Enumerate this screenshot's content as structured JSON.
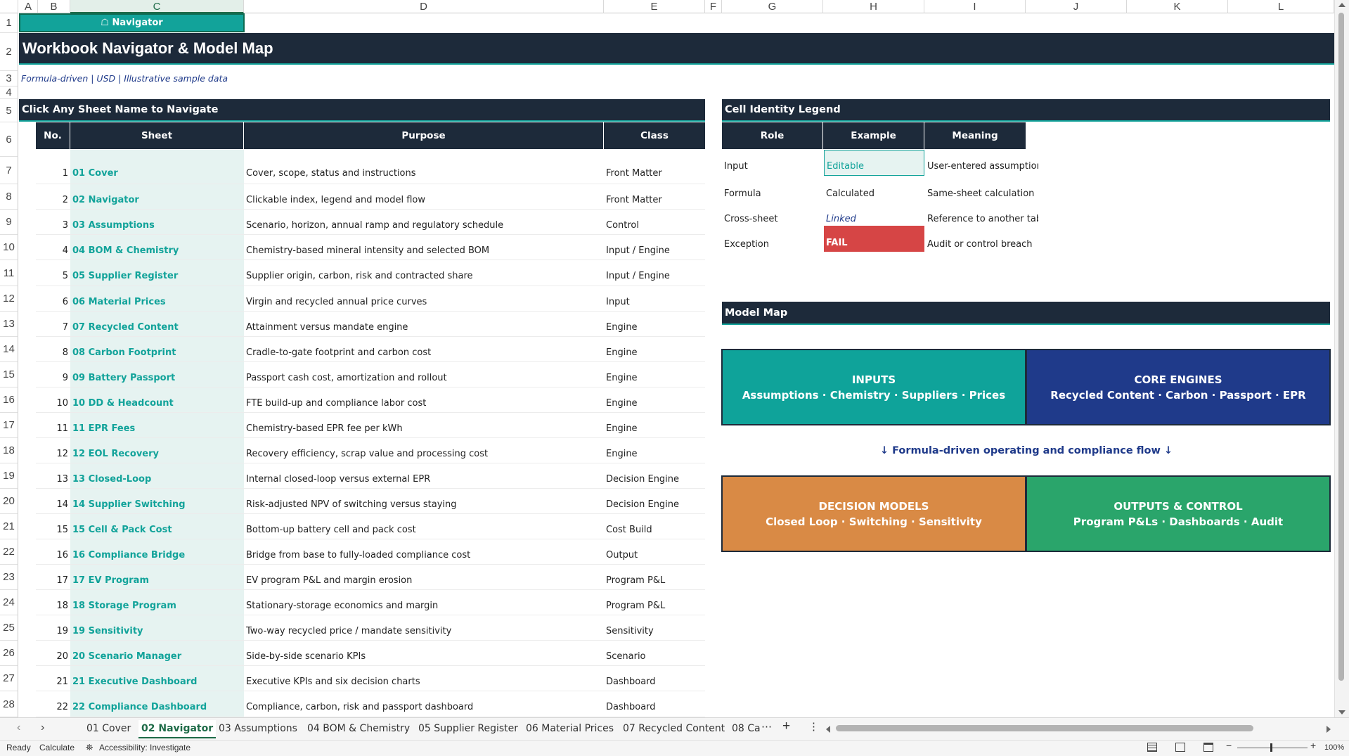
{
  "columns": [
    "A",
    "B",
    "C",
    "D",
    "E",
    "F",
    "G",
    "H",
    "I",
    "J",
    "K",
    "L"
  ],
  "row_numbers": [
    "1",
    "2",
    "3",
    "4",
    "5",
    "6",
    "7",
    "8",
    "9",
    "10",
    "11",
    "12",
    "13",
    "14",
    "15",
    "16",
    "17",
    "18",
    "19",
    "20",
    "21",
    "22",
    "23",
    "24",
    "25",
    "26",
    "27",
    "28"
  ],
  "nav_button": "☖ Navigator",
  "title": "Workbook Navigator & Model Map",
  "subtitle": "Formula-driven | USD | Illustrative sample data",
  "left_section": "Click Any Sheet Name to Navigate",
  "table_headers": [
    "No.",
    "Sheet",
    "Purpose",
    "Class"
  ],
  "sheets": [
    {
      "no": "1",
      "name": "01 Cover",
      "purpose": "Cover, scope, status and instructions",
      "cls": "Front Matter"
    },
    {
      "no": "2",
      "name": "02 Navigator",
      "purpose": "Clickable index, legend and model flow",
      "cls": "Front Matter"
    },
    {
      "no": "3",
      "name": "03 Assumptions",
      "purpose": "Scenario, horizon, annual ramp and regulatory schedule",
      "cls": "Control"
    },
    {
      "no": "4",
      "name": "04 BOM & Chemistry",
      "purpose": "Chemistry-based mineral intensity and selected BOM",
      "cls": "Input / Engine"
    },
    {
      "no": "5",
      "name": "05 Supplier Register",
      "purpose": "Supplier origin, carbon, risk and contracted share",
      "cls": "Input / Engine"
    },
    {
      "no": "6",
      "name": "06 Material Prices",
      "purpose": "Virgin and recycled annual price curves",
      "cls": "Input"
    },
    {
      "no": "7",
      "name": "07 Recycled Content",
      "purpose": "Attainment versus mandate engine",
      "cls": "Engine"
    },
    {
      "no": "8",
      "name": "08 Carbon Footprint",
      "purpose": "Cradle-to-gate footprint and carbon cost",
      "cls": "Engine"
    },
    {
      "no": "9",
      "name": "09 Battery Passport",
      "purpose": "Passport cash cost, amortization and rollout",
      "cls": "Engine"
    },
    {
      "no": "10",
      "name": "10 DD & Headcount",
      "purpose": "FTE build-up and compliance labor cost",
      "cls": "Engine"
    },
    {
      "no": "11",
      "name": "11 EPR Fees",
      "purpose": "Chemistry-based EPR fee per kWh",
      "cls": "Engine"
    },
    {
      "no": "12",
      "name": "12 EOL Recovery",
      "purpose": "Recovery efficiency, scrap value and processing cost",
      "cls": "Engine"
    },
    {
      "no": "13",
      "name": "13 Closed-Loop",
      "purpose": "Internal closed-loop versus external EPR",
      "cls": "Decision Engine"
    },
    {
      "no": "14",
      "name": "14 Supplier Switching",
      "purpose": "Risk-adjusted NPV of switching versus staying",
      "cls": "Decision Engine"
    },
    {
      "no": "15",
      "name": "15 Cell & Pack Cost",
      "purpose": "Bottom-up battery cell and pack cost",
      "cls": "Cost Build"
    },
    {
      "no": "16",
      "name": "16 Compliance Bridge",
      "purpose": "Bridge from base to fully-loaded compliance cost",
      "cls": "Output"
    },
    {
      "no": "17",
      "name": "17 EV Program",
      "purpose": "EV program P&L and margin erosion",
      "cls": "Program P&L"
    },
    {
      "no": "18",
      "name": "18 Storage Program",
      "purpose": "Stationary-storage economics and margin",
      "cls": "Program P&L"
    },
    {
      "no": "19",
      "name": "19 Sensitivity",
      "purpose": "Two-way recycled price / mandate sensitivity",
      "cls": "Sensitivity"
    },
    {
      "no": "20",
      "name": "20 Scenario Manager",
      "purpose": "Side-by-side scenario KPIs",
      "cls": "Scenario"
    },
    {
      "no": "21",
      "name": "21 Executive Dashboard",
      "purpose": "Executive KPIs and six decision charts",
      "cls": "Dashboard"
    },
    {
      "no": "22",
      "name": "22 Compliance Dashboard",
      "purpose": "Compliance, carbon, risk and passport dashboard",
      "cls": "Dashboard"
    }
  ],
  "legend": {
    "title": "Cell Identity Legend",
    "headers": [
      "Role",
      "Example",
      "Meaning"
    ],
    "rows": [
      {
        "role": "Input",
        "example": "Editable",
        "meaning": "User-entered assumption"
      },
      {
        "role": "Formula",
        "example": "Calculated",
        "meaning": "Same-sheet calculation"
      },
      {
        "role": "Cross-sheet",
        "example": "Linked",
        "meaning": "Reference to another tab"
      },
      {
        "role": "Exception",
        "example": "FAIL",
        "meaning": "Audit or control breach"
      }
    ]
  },
  "model_map": {
    "title": "Model Map",
    "flow": "↓  Formula-driven operating and compliance flow  ↓",
    "boxes": [
      {
        "title": "INPUTS",
        "detail": "Assumptions · Chemistry · Suppliers · Prices",
        "color": "#0fa39a"
      },
      {
        "title": "CORE ENGINES",
        "detail": "Recycled Content · Carbon · Passport · EPR",
        "color": "#1f3a8a"
      },
      {
        "title": "DECISION MODELS",
        "detail": "Closed Loop · Switching · Sensitivity",
        "color": "#d98a45"
      },
      {
        "title": "OUTPUTS & CONTROL",
        "detail": "Program P&Ls · Dashboards · Audit",
        "color": "#2aa56b"
      }
    ]
  },
  "tabs": [
    "01 Cover",
    "02 Navigator",
    "03 Assumptions",
    "04 BOM & Chemistry",
    "05 Supplier Register",
    "06 Material Prices",
    "07 Recycled Content",
    "08 Ca"
  ],
  "active_tab": "02 Navigator",
  "status": {
    "ready": "Ready",
    "calculate": "Calculate",
    "accessibility": "Accessibility: Investigate",
    "zoom": "100%"
  },
  "colors": {
    "dark": "#1d2a3a",
    "teal": "#12a39a",
    "fail": "#d64545",
    "input_fill": "#e6f3f1"
  }
}
